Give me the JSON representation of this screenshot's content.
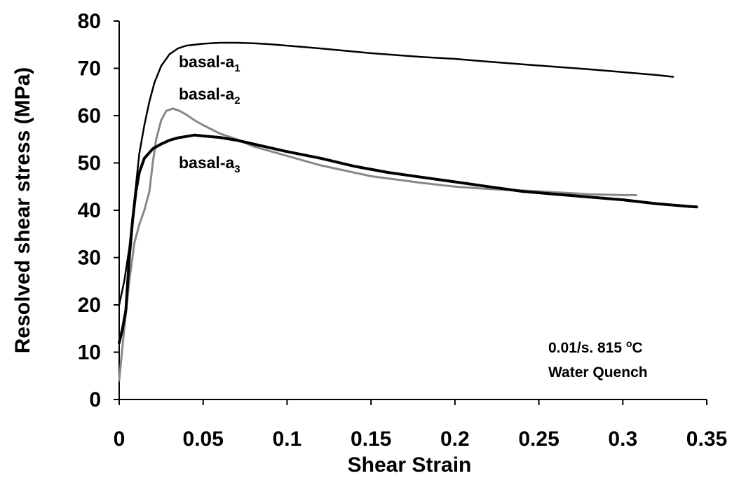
{
  "chart_data": {
    "type": "line",
    "title": "",
    "xlabel": "Shear Strain",
    "ylabel": "Resolved shear stress (MPa)",
    "xlim": [
      0,
      0.35
    ],
    "ylim": [
      0,
      80
    ],
    "x_ticks": [
      "0",
      "0.05",
      "0.1",
      "0.15",
      "0.2",
      "0.25",
      "0.3",
      "0.35"
    ],
    "y_ticks": [
      "0",
      "10",
      "20",
      "30",
      "40",
      "50",
      "60",
      "70",
      "80"
    ],
    "grid": false,
    "legend": "none",
    "annotations": {
      "line1_text": "0.01/s.  815 ",
      "line1_sup": "o",
      "line1_unit": "C",
      "line2": "Water Quench"
    },
    "series": [
      {
        "label_base": "basal-a",
        "label_sub": "1",
        "color": "#000000",
        "values": [
          [
            0,
            20
          ],
          [
            0.003,
            25
          ],
          [
            0.006,
            32
          ],
          [
            0.009,
            42
          ],
          [
            0.012,
            52
          ],
          [
            0.015,
            58
          ],
          [
            0.018,
            63
          ],
          [
            0.021,
            67
          ],
          [
            0.025,
            70.5
          ],
          [
            0.03,
            73
          ],
          [
            0.035,
            74.2
          ],
          [
            0.04,
            74.8
          ],
          [
            0.05,
            75.2
          ],
          [
            0.06,
            75.4
          ],
          [
            0.07,
            75.4
          ],
          [
            0.08,
            75.3
          ],
          [
            0.09,
            75.1
          ],
          [
            0.1,
            74.8
          ],
          [
            0.12,
            74.2
          ],
          [
            0.15,
            73.2
          ],
          [
            0.18,
            72.4
          ],
          [
            0.2,
            72
          ],
          [
            0.22,
            71.4
          ],
          [
            0.25,
            70.6
          ],
          [
            0.28,
            69.8
          ],
          [
            0.3,
            69.2
          ],
          [
            0.32,
            68.6
          ],
          [
            0.33,
            68.2
          ]
        ]
      },
      {
        "label_base": "basal-a",
        "label_sub": "2",
        "color": "#888888",
        "values": [
          [
            0,
            4
          ],
          [
            0.003,
            15
          ],
          [
            0.006,
            25
          ],
          [
            0.009,
            33
          ],
          [
            0.012,
            37
          ],
          [
            0.015,
            40
          ],
          [
            0.018,
            44
          ],
          [
            0.02,
            50
          ],
          [
            0.022,
            55
          ],
          [
            0.025,
            59
          ],
          [
            0.028,
            61
          ],
          [
            0.032,
            61.5
          ],
          [
            0.036,
            61
          ],
          [
            0.04,
            60.2
          ],
          [
            0.045,
            59
          ],
          [
            0.05,
            58
          ],
          [
            0.06,
            56.2
          ],
          [
            0.07,
            55
          ],
          [
            0.08,
            53.5
          ],
          [
            0.1,
            51.5
          ],
          [
            0.12,
            49.5
          ],
          [
            0.15,
            47.2
          ],
          [
            0.18,
            45.8
          ],
          [
            0.2,
            45
          ],
          [
            0.22,
            44.5
          ],
          [
            0.25,
            44
          ],
          [
            0.28,
            43.4
          ],
          [
            0.3,
            43.2
          ],
          [
            0.308,
            43.2
          ]
        ]
      },
      {
        "label_base": "basal-a",
        "label_sub": "3",
        "color": "#000000",
        "values": [
          [
            0,
            12
          ],
          [
            0.002,
            15
          ],
          [
            0.004,
            19
          ],
          [
            0.006,
            30
          ],
          [
            0.008,
            38
          ],
          [
            0.01,
            44
          ],
          [
            0.012,
            48
          ],
          [
            0.015,
            51
          ],
          [
            0.02,
            53
          ],
          [
            0.025,
            54
          ],
          [
            0.03,
            54.8
          ],
          [
            0.035,
            55.3
          ],
          [
            0.04,
            55.6
          ],
          [
            0.045,
            55.9
          ],
          [
            0.05,
            55.7
          ],
          [
            0.06,
            55.4
          ],
          [
            0.07,
            54.8
          ],
          [
            0.08,
            54
          ],
          [
            0.09,
            53.2
          ],
          [
            0.1,
            52.4
          ],
          [
            0.12,
            51
          ],
          [
            0.14,
            49.3
          ],
          [
            0.16,
            48
          ],
          [
            0.18,
            47
          ],
          [
            0.2,
            46
          ],
          [
            0.22,
            45
          ],
          [
            0.24,
            44
          ],
          [
            0.26,
            43.4
          ],
          [
            0.28,
            42.8
          ],
          [
            0.3,
            42.2
          ],
          [
            0.32,
            41.4
          ],
          [
            0.34,
            40.8
          ],
          [
            0.344,
            40.7
          ]
        ]
      }
    ]
  }
}
